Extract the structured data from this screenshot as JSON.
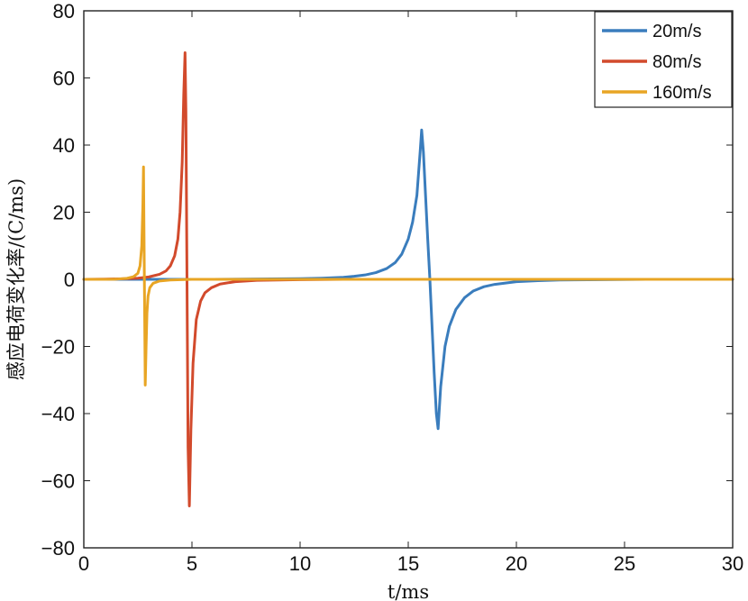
{
  "chart_data": {
    "type": "line",
    "title": "",
    "xlabel": "t/ms",
    "ylabel": "感应电荷变化率/(C/ms)",
    "xlim": [
      0,
      30
    ],
    "ylim": [
      -80,
      80
    ],
    "xticks": [
      0,
      5,
      10,
      15,
      20,
      25,
      30
    ],
    "yticks": [
      -80,
      -60,
      -40,
      -20,
      0,
      20,
      40,
      60,
      80
    ],
    "xtick_labels": [
      "0",
      "5",
      "10",
      "15",
      "20",
      "25",
      "30"
    ],
    "ytick_labels": [
      "−80",
      "−60",
      "−40",
      "−20",
      "0",
      "20",
      "40",
      "60",
      "80"
    ],
    "grid": false,
    "legend": "top-right",
    "series": [
      {
        "name": "20m/s",
        "color": "#3a7dbd",
        "x": [
          0,
          4,
          6,
          8,
          10,
          11,
          12,
          12.5,
          13,
          13.5,
          14,
          14.4,
          14.7,
          15,
          15.2,
          15.4,
          15.55,
          15.62,
          15.7,
          15.8,
          15.9,
          16.0,
          16.1,
          16.2,
          16.3,
          16.38,
          16.5,
          16.7,
          16.9,
          17.2,
          17.6,
          18,
          18.5,
          19,
          20,
          21,
          22,
          24,
          26,
          28,
          30
        ],
        "y": [
          0,
          0,
          0,
          0.1,
          0.2,
          0.35,
          0.6,
          0.9,
          1.3,
          2.0,
          3.2,
          5.0,
          7.5,
          12,
          17,
          25,
          38,
          44.5,
          38,
          25,
          12,
          0,
          -14,
          -28,
          -40,
          -44.5,
          -32,
          -20,
          -14,
          -9,
          -5.5,
          -3.5,
          -2.2,
          -1.5,
          -0.7,
          -0.4,
          -0.2,
          -0.1,
          0,
          0,
          0
        ]
      },
      {
        "name": "80m/s",
        "color": "#d24a2c",
        "x": [
          0,
          1,
          2,
          2.5,
          3,
          3.5,
          3.8,
          4.0,
          4.2,
          4.35,
          4.45,
          4.55,
          4.62,
          4.68,
          4.72,
          4.77,
          4.82,
          4.88,
          4.95,
          5.05,
          5.2,
          5.4,
          5.6,
          5.9,
          6.3,
          7,
          8,
          10,
          12,
          30
        ],
        "y": [
          0,
          0.05,
          0.2,
          0.35,
          0.7,
          1.5,
          2.5,
          4.0,
          7.0,
          12,
          20,
          35,
          55,
          67.5,
          50,
          0,
          -50,
          -67.5,
          -45,
          -25,
          -12,
          -6.5,
          -4,
          -2.5,
          -1.4,
          -0.7,
          -0.3,
          -0.1,
          0,
          0
        ]
      },
      {
        "name": "160m/s",
        "color": "#e8a524",
        "x": [
          0,
          1,
          1.5,
          2,
          2.3,
          2.5,
          2.6,
          2.68,
          2.73,
          2.76,
          2.8,
          2.84,
          2.88,
          2.92,
          2.97,
          3.05,
          3.2,
          3.5,
          4,
          5,
          30
        ],
        "y": [
          0,
          0,
          0.05,
          0.3,
          0.8,
          1.8,
          4.0,
          10,
          22,
          33.5,
          0,
          -31.5,
          -20,
          -10,
          -5,
          -2.5,
          -1.2,
          -0.5,
          -0.2,
          0,
          0
        ]
      }
    ]
  }
}
